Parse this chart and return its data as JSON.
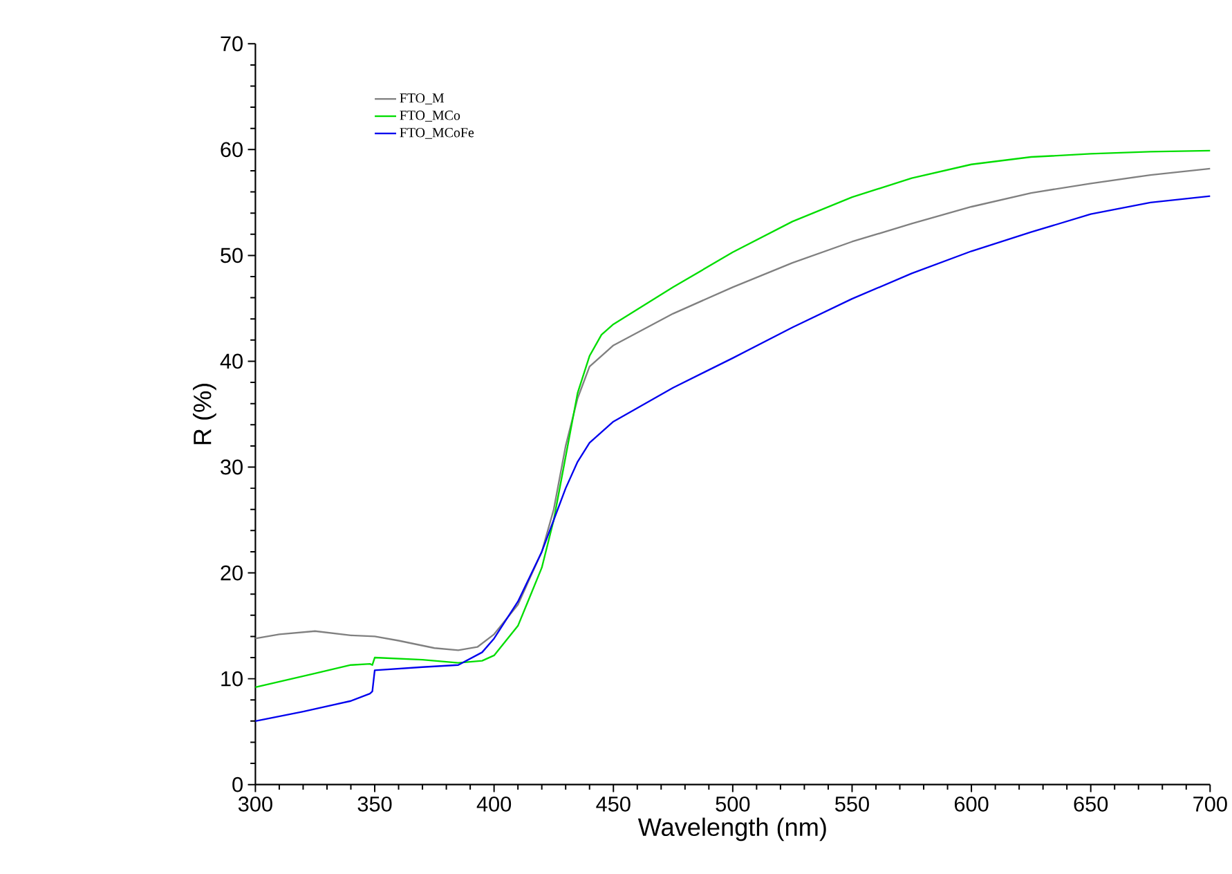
{
  "chart_data": {
    "type": "line",
    "xlabel": "Wavelength (nm)",
    "ylabel": "R (%)",
    "xlim": [
      300,
      700
    ],
    "ylim": [
      0,
      70
    ],
    "xticks": [
      300,
      350,
      400,
      450,
      500,
      550,
      600,
      650,
      700
    ],
    "yticks": [
      0,
      10,
      20,
      30,
      40,
      50,
      60,
      70
    ],
    "legend": "top left",
    "grid": false,
    "line_style": "solid",
    "marker": "none",
    "series": [
      {
        "name": "FTO_M",
        "color": "#808080",
        "x": [
          300,
          310,
          325,
          340,
          350,
          360,
          375,
          385,
          393,
          400,
          410,
          420,
          425,
          430,
          435,
          440,
          450,
          475,
          500,
          525,
          550,
          575,
          600,
          625,
          650,
          675,
          700
        ],
        "values": [
          13.8,
          14.2,
          14.5,
          14.1,
          14.0,
          13.6,
          12.9,
          12.7,
          13.0,
          14.2,
          17,
          22,
          26,
          32,
          36.5,
          39.5,
          41.5,
          44.5,
          47,
          49.3,
          51.3,
          53,
          54.6,
          55.9,
          56.8,
          57.6,
          58.2
        ]
      },
      {
        "name": "FTO_MCo",
        "color": "#00dd00",
        "x": [
          300,
          325,
          340,
          348,
          349,
          350,
          370,
          385,
          395,
          400,
          410,
          420,
          425,
          430,
          435,
          440,
          445,
          450,
          475,
          500,
          525,
          550,
          575,
          600,
          625,
          650,
          675,
          700
        ],
        "values": [
          9.2,
          10.5,
          11.3,
          11.4,
          11.3,
          12.0,
          11.8,
          11.5,
          11.7,
          12.2,
          15,
          20.5,
          25,
          31,
          37,
          40.5,
          42.5,
          43.5,
          47,
          50.3,
          53.2,
          55.5,
          57.3,
          58.6,
          59.3,
          59.6,
          59.8,
          59.9
        ]
      },
      {
        "name": "FTO_MCoFe",
        "color": "#0000ee",
        "x": [
          300,
          320,
          340,
          348,
          349,
          350,
          370,
          385,
          395,
          400,
          410,
          420,
          425,
          430,
          435,
          440,
          450,
          475,
          500,
          525,
          550,
          575,
          600,
          625,
          650,
          675,
          700
        ],
        "values": [
          6.0,
          6.9,
          7.9,
          8.6,
          8.8,
          10.8,
          11.1,
          11.3,
          12.5,
          13.8,
          17.3,
          22,
          25,
          28,
          30.5,
          32.3,
          34.3,
          37.5,
          40.3,
          43.2,
          45.9,
          48.3,
          50.4,
          52.2,
          53.9,
          55,
          55.6
        ]
      }
    ]
  }
}
